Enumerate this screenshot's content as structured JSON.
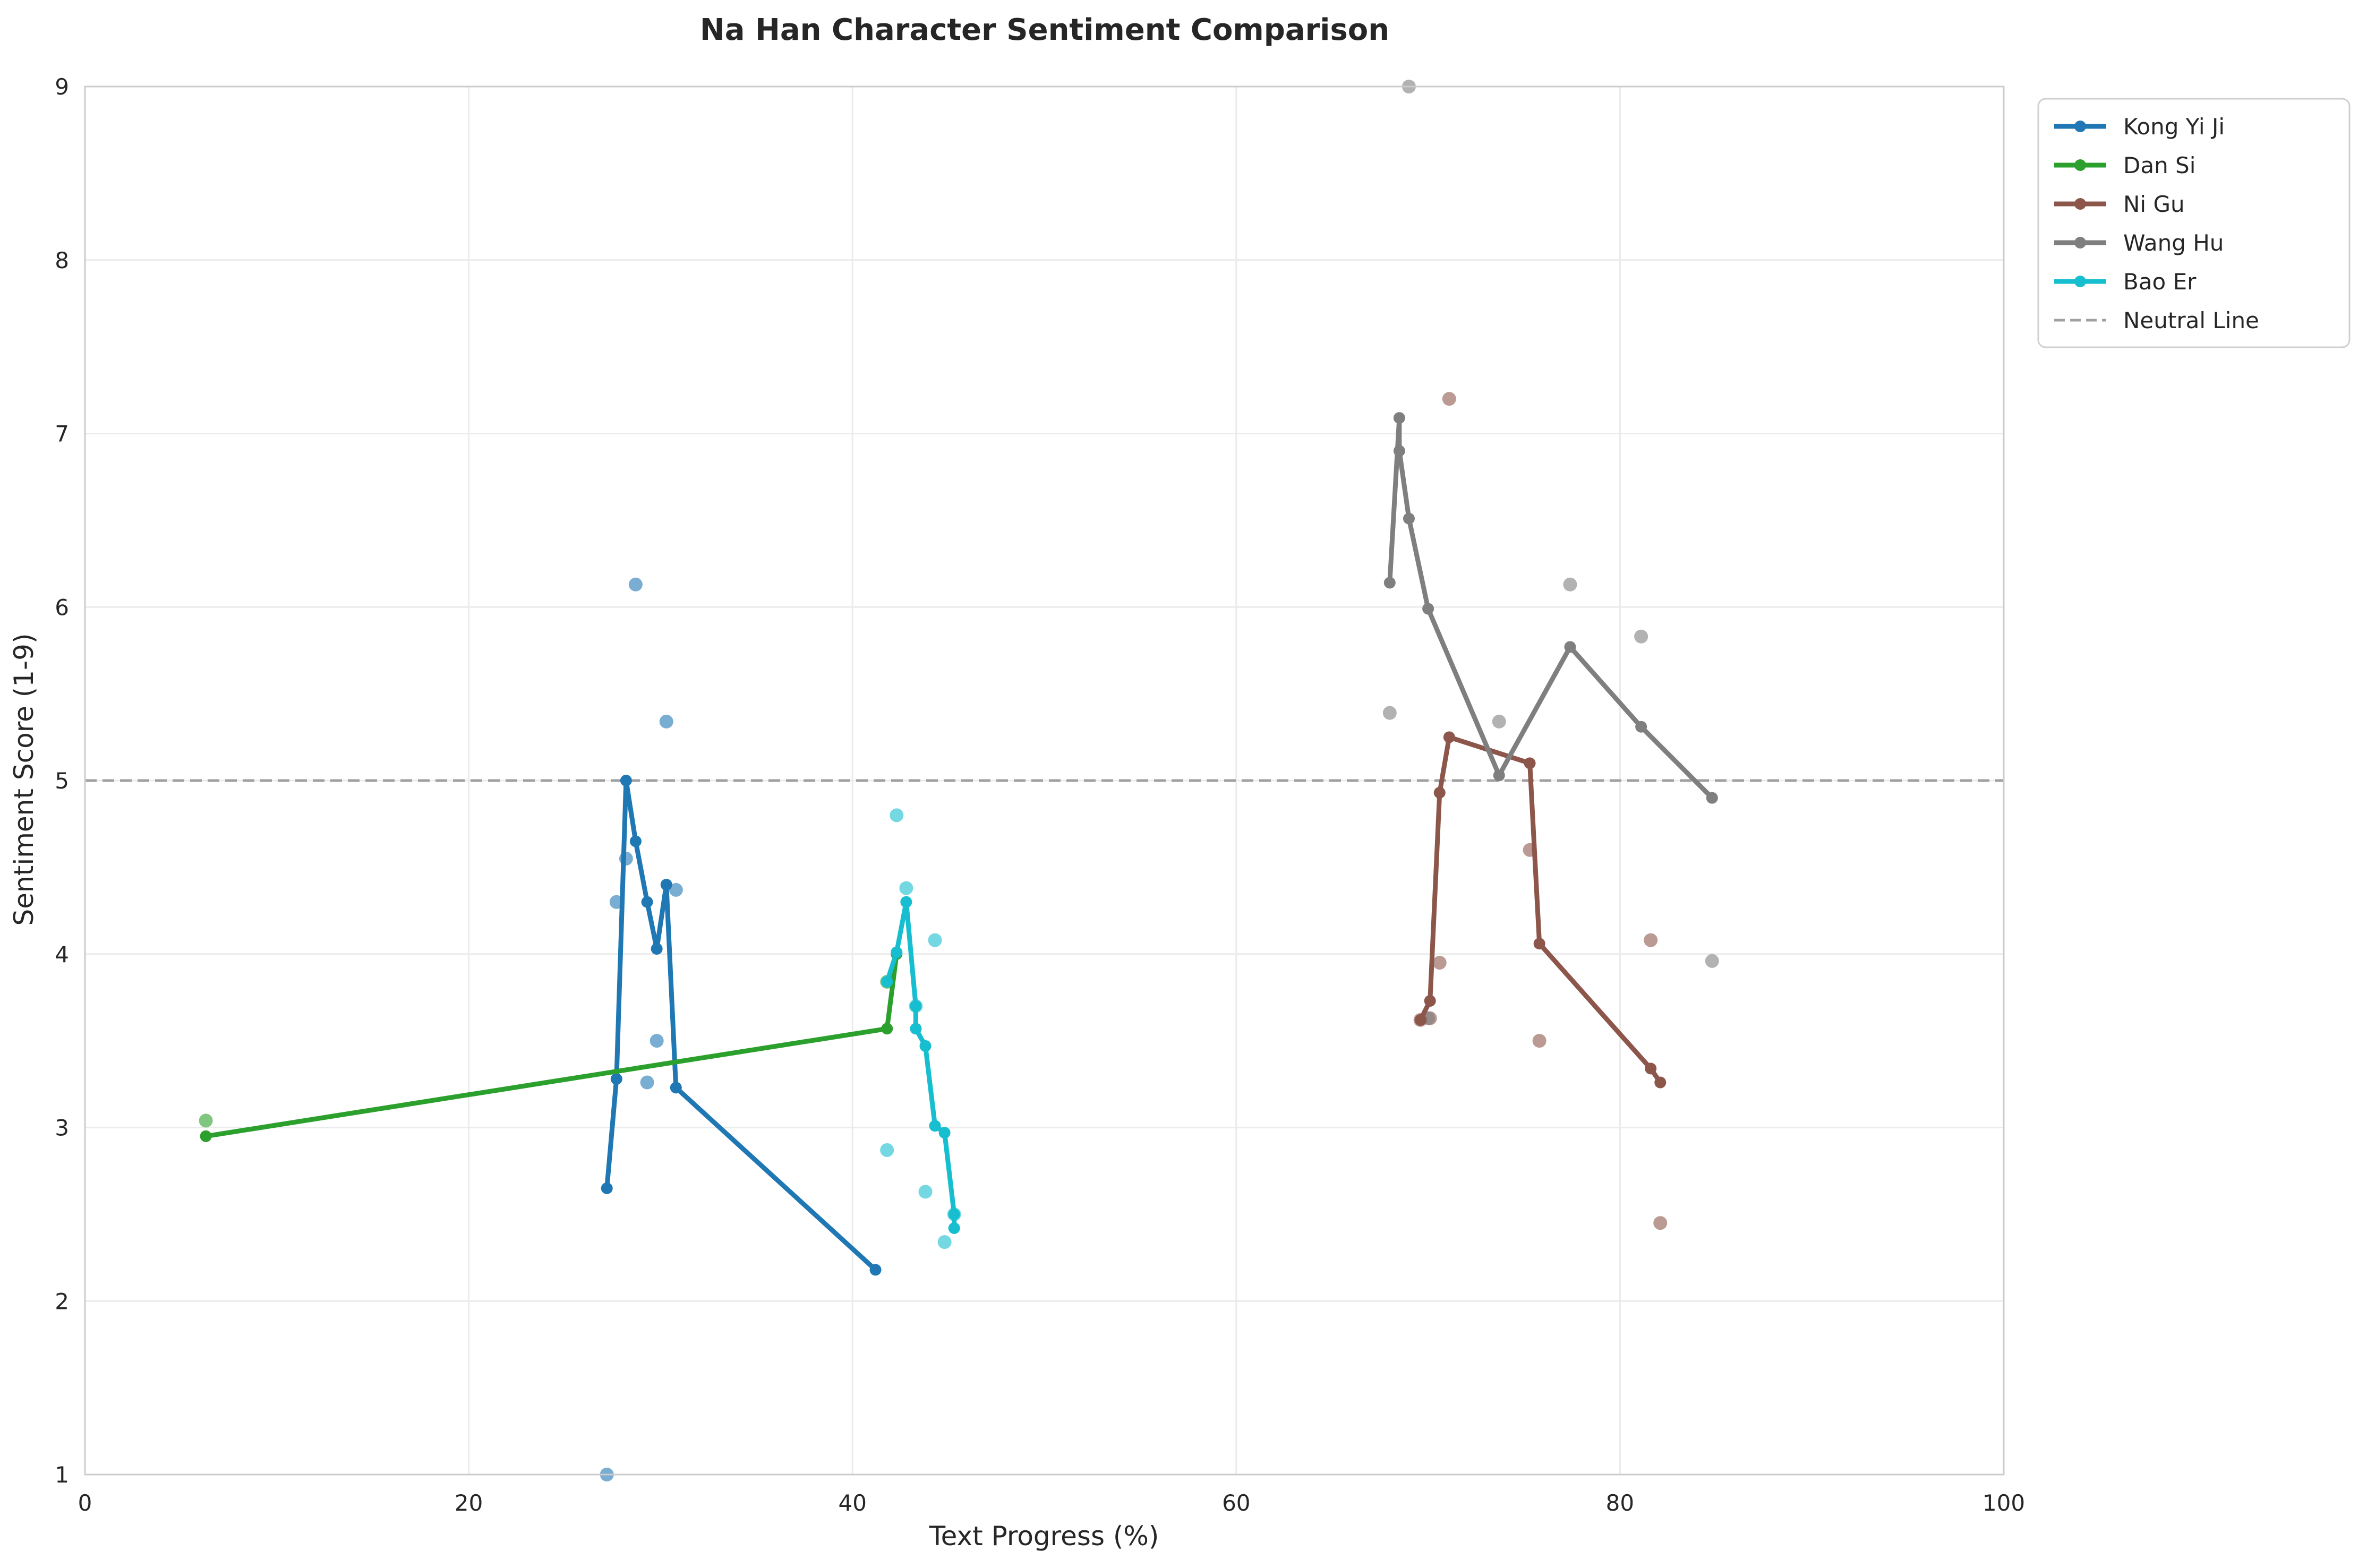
{
  "chart_data": {
    "type": "line",
    "title": "Na Han Character Sentiment Comparison",
    "xlabel": "Text Progress (%)",
    "ylabel": "Sentiment Score (1-9)",
    "xlim": [
      0,
      100
    ],
    "ylim": [
      1,
      9
    ],
    "xticks": [
      0,
      20,
      40,
      60,
      80,
      100
    ],
    "yticks": [
      1,
      2,
      3,
      4,
      5,
      6,
      7,
      8,
      9
    ],
    "grid": true,
    "legend_position": "outside-top-right",
    "neutral_line": {
      "y": 5,
      "label": "Neutral Line",
      "color": "#a0a0a0"
    },
    "series": [
      {
        "name": "Kong Yi Ji",
        "color": "#1f77b4",
        "line": [
          [
            27.2,
            2.65
          ],
          [
            27.7,
            3.28
          ],
          [
            28.2,
            5.0
          ],
          [
            28.7,
            4.65
          ],
          [
            29.3,
            4.3
          ],
          [
            29.8,
            4.03
          ],
          [
            30.3,
            4.4
          ],
          [
            30.8,
            3.23
          ],
          [
            41.2,
            2.18
          ]
        ],
        "raw": [
          [
            27.2,
            1.0
          ],
          [
            27.7,
            4.3
          ],
          [
            28.2,
            4.55
          ],
          [
            28.7,
            6.13
          ],
          [
            29.3,
            3.26
          ],
          [
            29.8,
            3.5
          ],
          [
            30.3,
            5.34
          ],
          [
            30.8,
            4.37
          ]
        ]
      },
      {
        "name": "Dan Si",
        "color": "#2ca02c",
        "line": [
          [
            6.3,
            2.95
          ],
          [
            41.8,
            3.57
          ],
          [
            42.3,
            4.0
          ]
        ],
        "raw": [
          [
            6.3,
            3.04
          ],
          [
            41.8,
            3.84
          ]
        ]
      },
      {
        "name": "Ni Gu",
        "color": "#8c564b",
        "line": [
          [
            69.6,
            3.62
          ],
          [
            70.1,
            3.73
          ],
          [
            70.6,
            4.93
          ],
          [
            71.1,
            5.25
          ],
          [
            75.3,
            5.1
          ],
          [
            75.8,
            4.06
          ],
          [
            81.6,
            3.34
          ],
          [
            82.1,
            3.26
          ]
        ],
        "raw": [
          [
            69.6,
            3.62
          ],
          [
            70.1,
            3.63
          ],
          [
            70.6,
            3.95
          ],
          [
            71.1,
            7.2
          ],
          [
            75.3,
            4.6
          ],
          [
            75.8,
            3.5
          ],
          [
            81.6,
            4.08
          ],
          [
            82.1,
            2.45
          ]
        ]
      },
      {
        "name": "Wang Hu",
        "color": "#7f7f7f",
        "line": [
          [
            68.0,
            6.14
          ],
          [
            68.5,
            7.09
          ],
          [
            68.5,
            6.9
          ],
          [
            69.0,
            6.51
          ],
          [
            70.0,
            5.99
          ],
          [
            73.7,
            5.03
          ],
          [
            77.4,
            5.77
          ],
          [
            81.1,
            5.31
          ],
          [
            84.8,
            4.9
          ]
        ],
        "raw": [
          [
            68.0,
            5.39
          ],
          [
            69.0,
            9.0
          ],
          [
            70.0,
            3.63
          ],
          [
            73.7,
            5.34
          ],
          [
            77.4,
            6.13
          ],
          [
            81.1,
            5.83
          ],
          [
            84.8,
            3.96
          ]
        ]
      },
      {
        "name": "Bao Er",
        "color": "#17becf",
        "line": [
          [
            41.8,
            3.84
          ],
          [
            42.3,
            4.01
          ],
          [
            42.8,
            4.3
          ],
          [
            43.3,
            3.7
          ],
          [
            43.3,
            3.57
          ],
          [
            43.8,
            3.47
          ],
          [
            44.3,
            3.01
          ],
          [
            44.8,
            2.97
          ],
          [
            45.3,
            2.5
          ],
          [
            45.3,
            2.42
          ]
        ],
        "raw": [
          [
            41.8,
            2.87
          ],
          [
            42.3,
            4.8
          ],
          [
            42.8,
            4.38
          ],
          [
            43.3,
            3.7
          ],
          [
            43.8,
            2.63
          ],
          [
            44.3,
            4.08
          ],
          [
            44.8,
            2.34
          ],
          [
            45.3,
            2.5
          ]
        ]
      }
    ]
  }
}
